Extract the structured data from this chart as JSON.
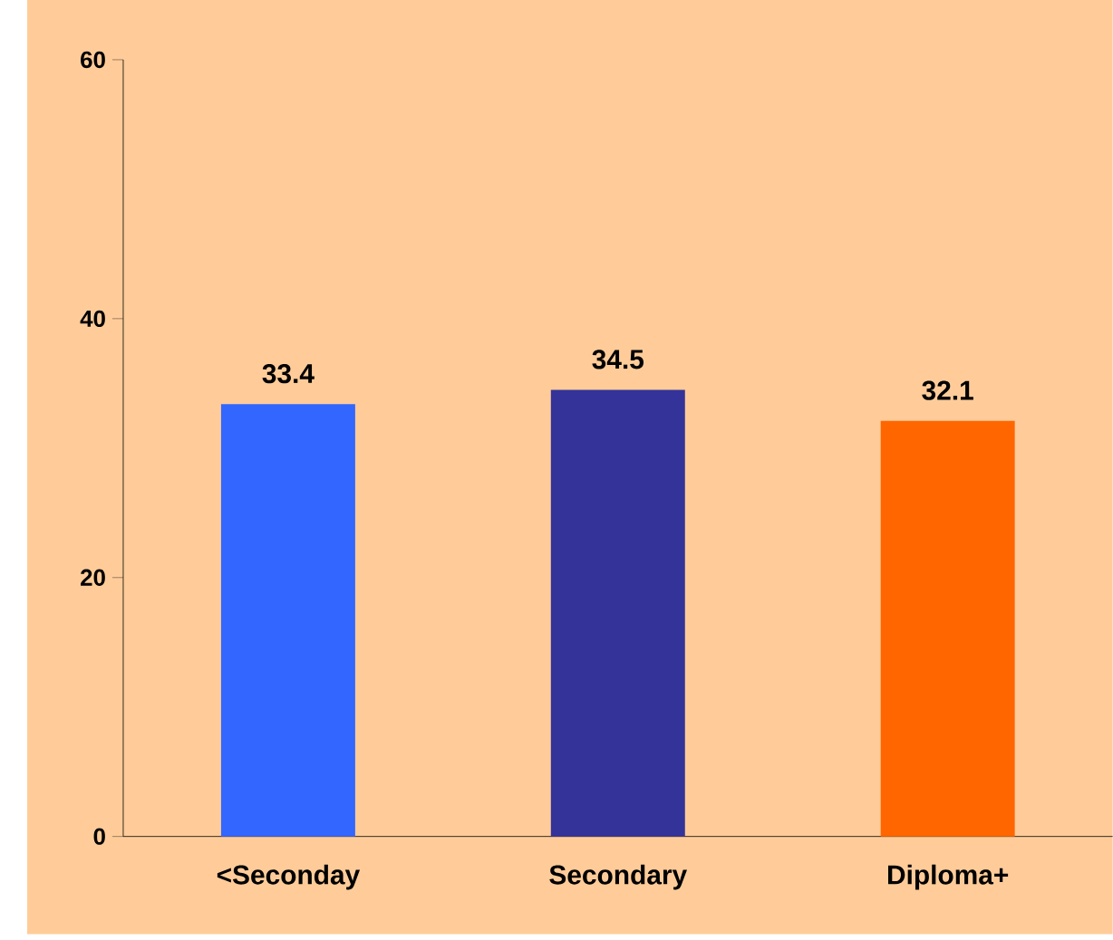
{
  "chart_data": {
    "type": "bar",
    "categories": [
      "<Seconday",
      "Secondary",
      "Diploma+"
    ],
    "values": [
      33.4,
      34.5,
      32.1
    ],
    "colors": [
      "#3366ff",
      "#333399",
      "#ff6600"
    ],
    "ylim": [
      0,
      60
    ],
    "yticks": [
      0,
      20,
      40,
      60
    ],
    "data_labels": true,
    "grid": false
  }
}
